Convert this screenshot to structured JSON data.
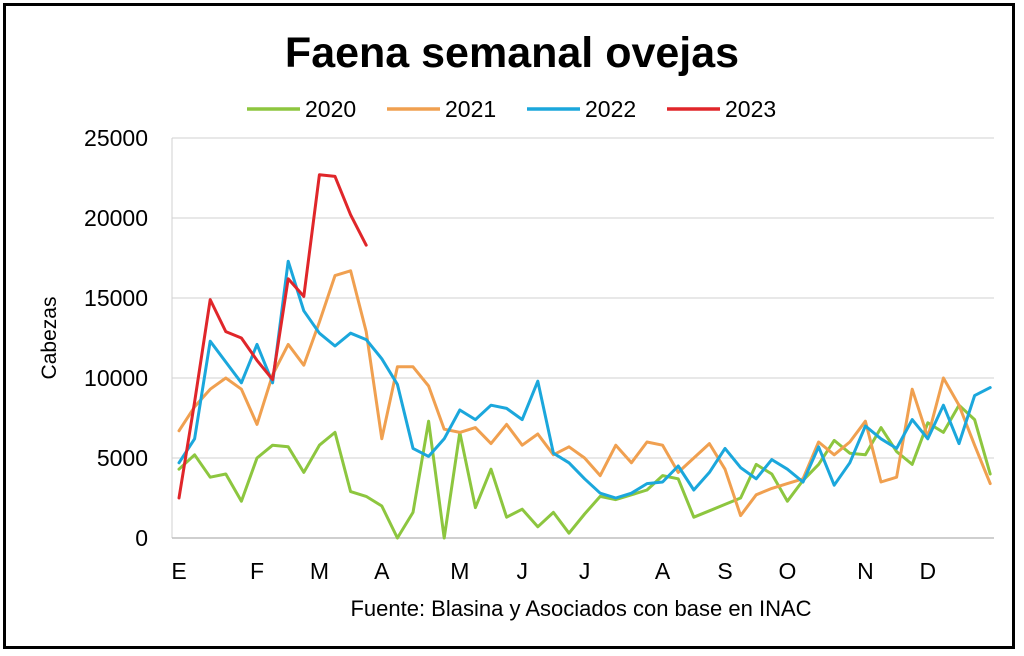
{
  "chart_data": {
    "type": "line",
    "title": "Faena semanal ovejas",
    "ylabel": "Cabezas",
    "xlabel": "",
    "source": "Fuente: Blasina y Asociados con base en INAC",
    "ylim": [
      0,
      25000
    ],
    "yticks": [
      0,
      5000,
      10000,
      15000,
      20000,
      25000
    ],
    "grid": true,
    "legend_position": "top",
    "month_ticks": [
      {
        "label": "E",
        "week": 1
      },
      {
        "label": "F",
        "week": 6
      },
      {
        "label": "M",
        "week": 10
      },
      {
        "label": "A",
        "week": 14
      },
      {
        "label": "M",
        "week": 19
      },
      {
        "label": "J",
        "week": 23
      },
      {
        "label": "J",
        "week": 27
      },
      {
        "label": "A",
        "week": 32
      },
      {
        "label": "S",
        "week": 36
      },
      {
        "label": "O",
        "week": 40
      },
      {
        "label": "N",
        "week": 45
      },
      {
        "label": "D",
        "week": 49
      }
    ],
    "series": [
      {
        "name": "2020",
        "color": "#8dc63f",
        "values": [
          4300,
          5200,
          3800,
          4000,
          2300,
          5000,
          5800,
          5700,
          4100,
          5800,
          6600,
          2900,
          2600,
          2000,
          0,
          1600,
          7300,
          0,
          6600,
          1900,
          4300,
          1300,
          1800,
          700,
          1600,
          300,
          1500,
          2600,
          2400,
          2700,
          3000,
          3900,
          3700,
          1300,
          1700,
          2100,
          2500,
          4600,
          4000,
          2300,
          3600,
          4600,
          6100,
          5300,
          5200,
          6900,
          5400,
          4600,
          7200,
          6600,
          8300,
          7400,
          4000
        ]
      },
      {
        "name": "2021",
        "color": "#f0a050",
        "values": [
          6700,
          8200,
          9300,
          10000,
          9300,
          7100,
          10200,
          12100,
          10800,
          13500,
          16400,
          16700,
          12900,
          6200,
          10700,
          10700,
          9500,
          6800,
          6600,
          6900,
          5900,
          7100,
          5800,
          6500,
          5200,
          5700,
          5000,
          3900,
          5800,
          4700,
          6000,
          5800,
          4100,
          5000,
          5900,
          4300,
          1400,
          2700,
          3100,
          3400,
          3700,
          6000,
          5200,
          6000,
          7300,
          3500,
          3800,
          9300,
          6300,
          10000,
          8300,
          5800,
          3400
        ]
      },
      {
        "name": "2022",
        "color": "#1ba7dc",
        "values": [
          4700,
          6200,
          12300,
          11000,
          9700,
          12100,
          9700,
          17300,
          14200,
          12800,
          12000,
          12800,
          12400,
          11200,
          9600,
          5600,
          5100,
          6200,
          8000,
          7400,
          8300,
          8100,
          7400,
          9800,
          5300,
          4700,
          3700,
          2800,
          2500,
          2800,
          3400,
          3500,
          4500,
          3000,
          4100,
          5600,
          4400,
          3700,
          4900,
          4300,
          3500,
          5700,
          3300,
          4700,
          7000,
          6200,
          5600,
          7400,
          6200,
          8300,
          5900,
          8900,
          9400
        ]
      },
      {
        "name": "2023",
        "color": "#e0262a",
        "values": [
          2500,
          8500,
          14900,
          12900,
          12500,
          11100,
          9900,
          16200,
          15100,
          22700,
          22600,
          20200,
          18300
        ]
      }
    ]
  }
}
